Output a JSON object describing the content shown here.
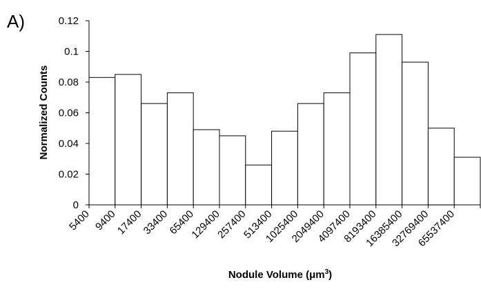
{
  "panel_label": "A)",
  "chart_data": {
    "type": "bar",
    "title": "",
    "xlabel": "Nodule Volume (μm",
    "xlabel_superscript": "3",
    "xlabel_suffix": ")",
    "ylabel": "Normalized Counts",
    "ylim": [
      0,
      0.12
    ],
    "yticks": [
      "0",
      "0.02",
      "0.04",
      "0.06",
      "0.08",
      "0.1",
      "0.12"
    ],
    "categories": [
      "5400",
      "9400",
      "17400",
      "33400",
      "65400",
      "129400",
      "257400",
      "513400",
      "1025400",
      "2049400",
      "4097400",
      "8193400",
      "16385400",
      "32769400",
      "65537400"
    ],
    "values": [
      0.083,
      0.085,
      0.066,
      0.073,
      0.049,
      0.045,
      0.026,
      0.048,
      0.066,
      0.073,
      0.099,
      0.111,
      0.093,
      0.05,
      0.031
    ],
    "grid": false,
    "legend": false
  }
}
